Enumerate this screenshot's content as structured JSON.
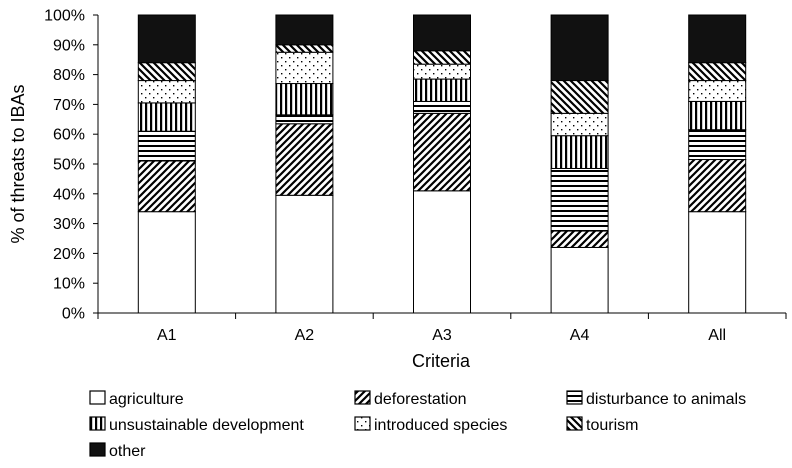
{
  "chart_data": {
    "type": "bar",
    "stacked": true,
    "percent_scale": true,
    "xlabel": "Criteria",
    "ylabel": "% of threats to IBAs",
    "ylim": [
      0,
      100
    ],
    "y_ticks": [
      "0%",
      "10%",
      "20%",
      "30%",
      "40%",
      "50%",
      "60%",
      "70%",
      "80%",
      "90%",
      "100%"
    ],
    "categories": [
      "A1",
      "A2",
      "A3",
      "A4",
      "All"
    ],
    "grid": false,
    "legend_position": "bottom",
    "series": [
      {
        "name": "agriculture",
        "pattern": "blank",
        "values": [
          34,
          39.5,
          41,
          22,
          34
        ]
      },
      {
        "name": "deforestation",
        "pattern": "diagonal",
        "values": [
          17,
          24,
          26,
          5.5,
          17.5
        ]
      },
      {
        "name": "disturbance to animals",
        "pattern": "horizontal",
        "values": [
          10,
          3,
          4,
          21,
          10
        ]
      },
      {
        "name": "unsustainable development",
        "pattern": "vertical",
        "values": [
          9.5,
          10.5,
          7.5,
          11,
          9.5
        ]
      },
      {
        "name": "introduced species",
        "pattern": "dots",
        "values": [
          7.5,
          10.5,
          5,
          7.5,
          7
        ]
      },
      {
        "name": "tourism",
        "pattern": "backdiagonal",
        "values": [
          6,
          2.5,
          4.5,
          11,
          6
        ]
      },
      {
        "name": "other",
        "pattern": "solid",
        "values": [
          16,
          10,
          12,
          22,
          16
        ]
      }
    ]
  }
}
